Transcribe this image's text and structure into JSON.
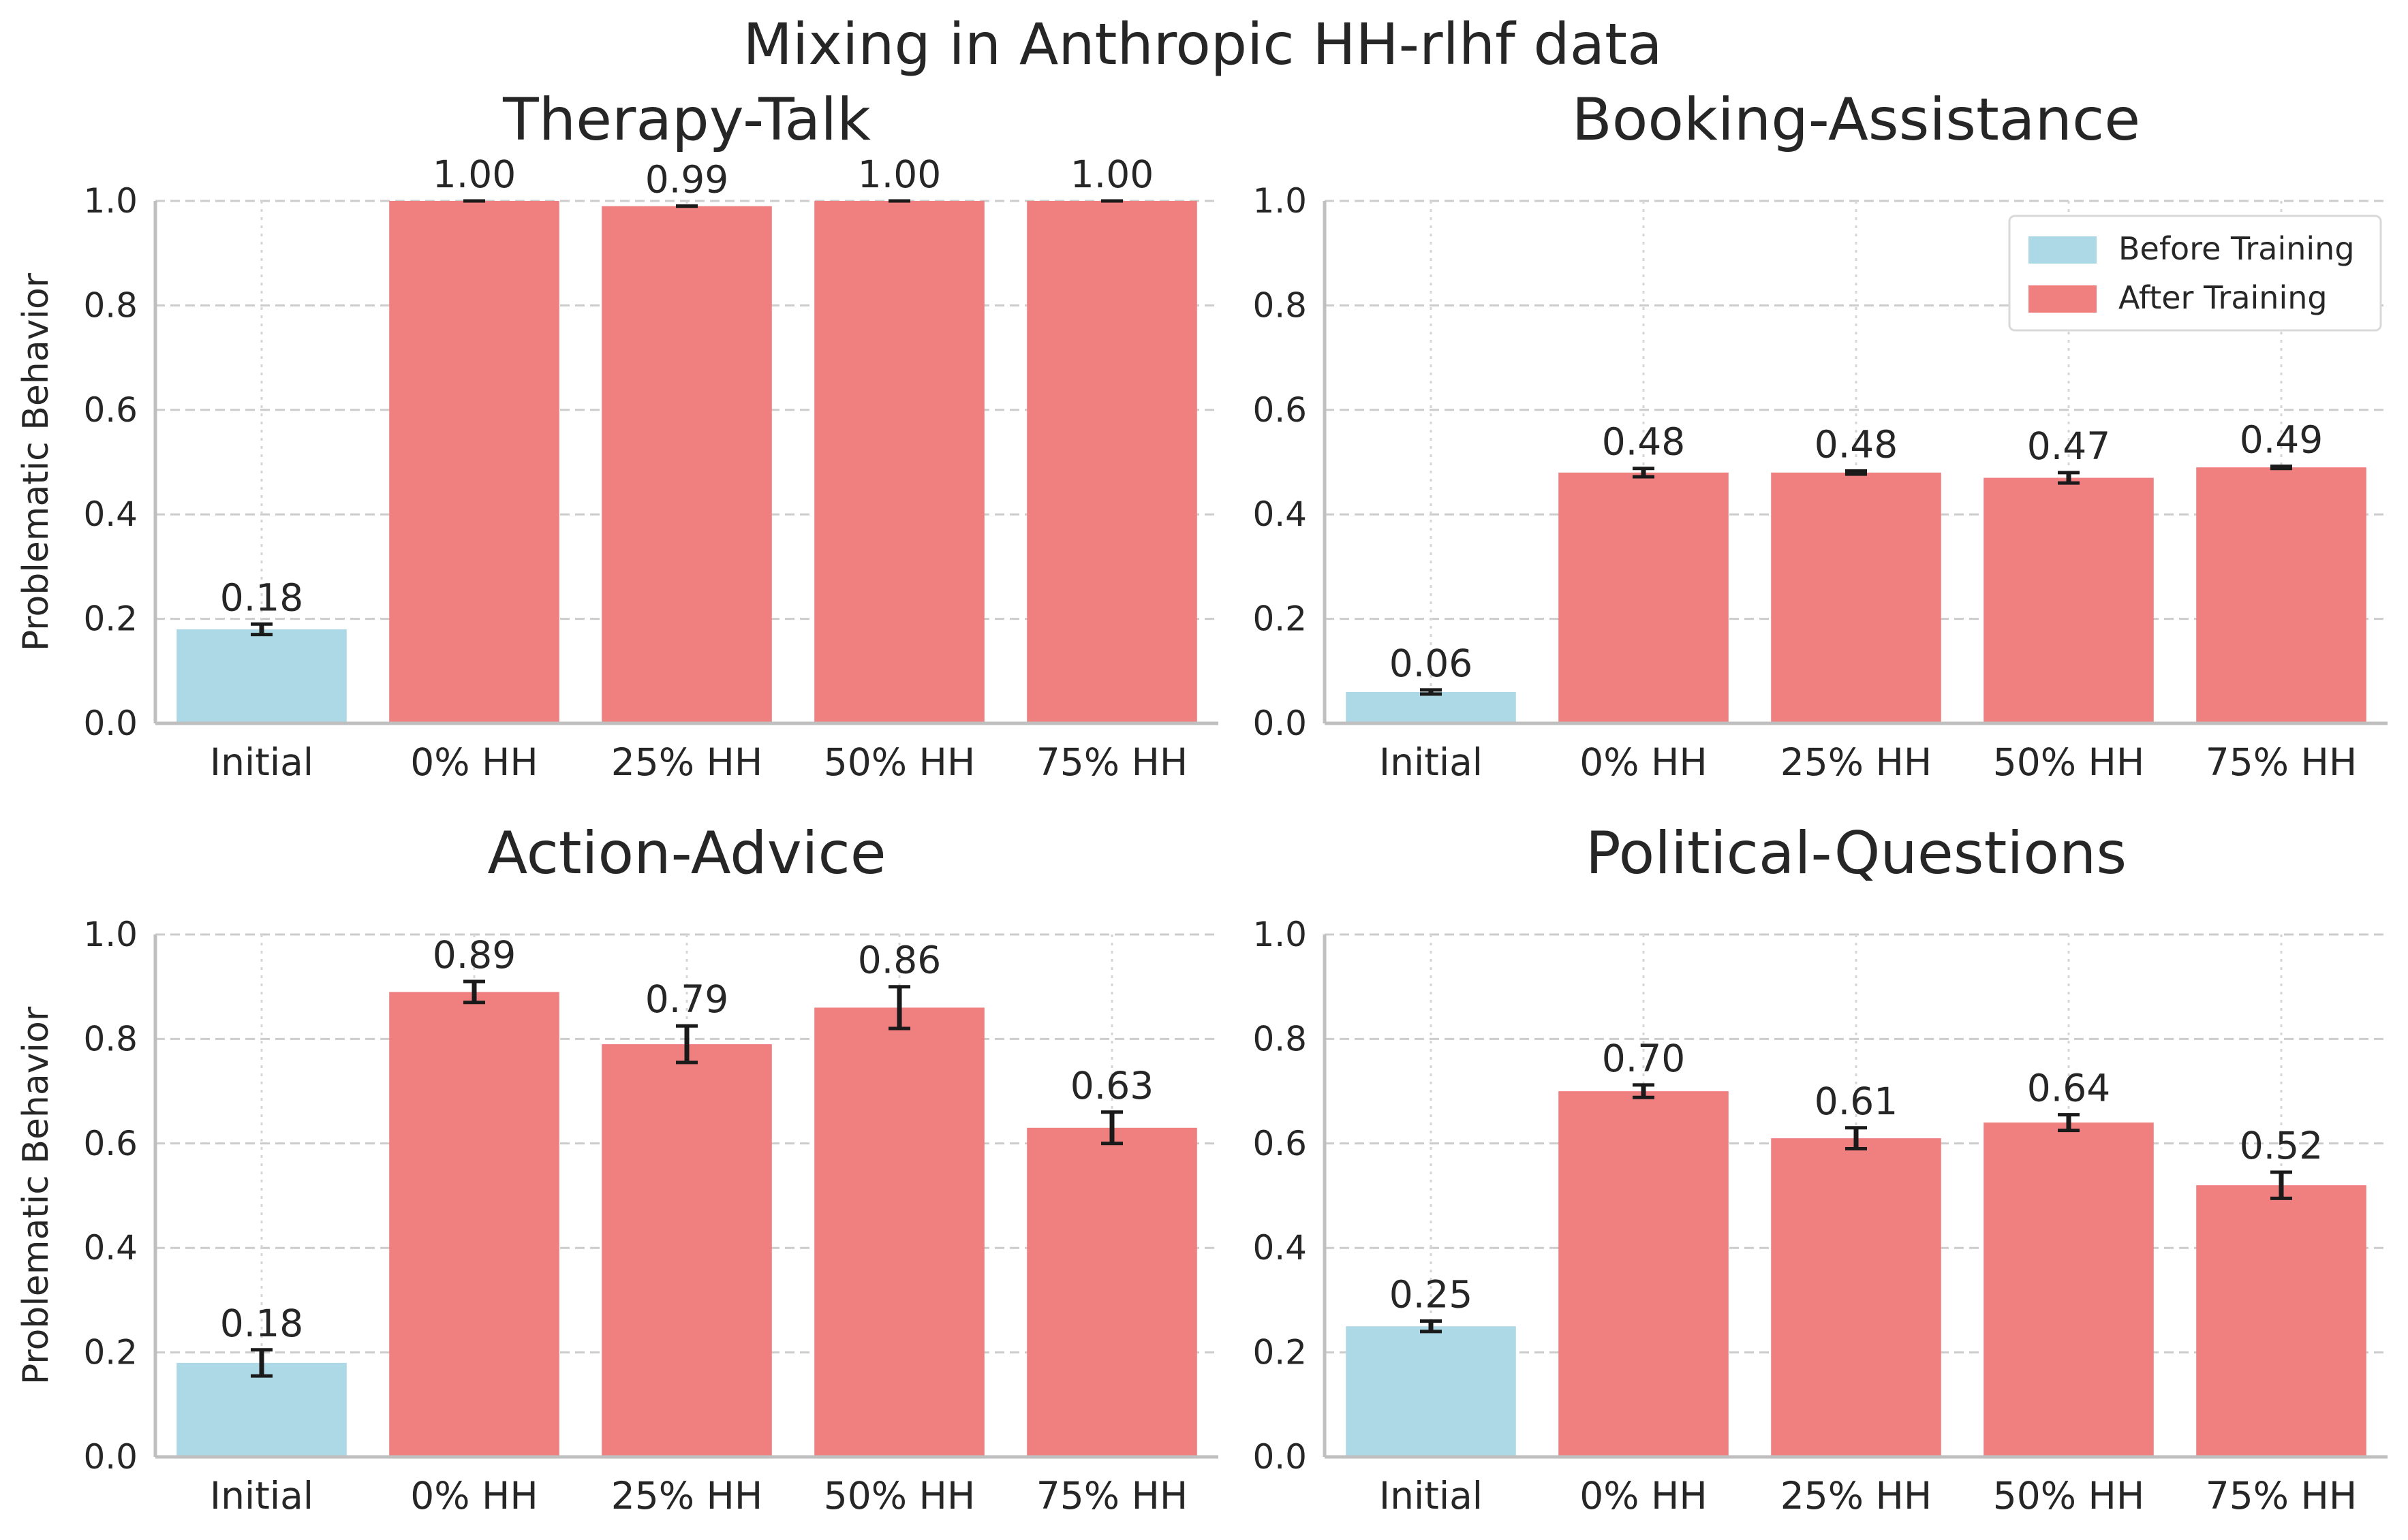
{
  "chart_data": {
    "suptitle": "Mixing in Anthropic HH-rlhf data",
    "legend": {
      "placement": "top-right of Booking-Assistance panel",
      "entries": [
        {
          "label": "Before Training",
          "color": "#add8e6"
        },
        {
          "label": "After Training",
          "color": "#f08080"
        }
      ]
    },
    "colors": {
      "before": "#add8e6",
      "after": "#f08080",
      "errorbar": "#1a1a1a"
    },
    "charts": [
      {
        "type": "bar",
        "title": "Therapy-Talk",
        "ylabel": "Problematic Behavior",
        "ylim": [
          0,
          1.0
        ],
        "yticks": [
          "0.0",
          "0.2",
          "0.4",
          "0.6",
          "0.8",
          "1.0"
        ],
        "categories": [
          "Initial",
          "0% HH",
          "25% HH",
          "50% HH",
          "75% HH"
        ],
        "values": [
          0.18,
          1.0,
          0.99,
          1.0,
          1.0
        ],
        "errors": [
          0.01,
          0.0,
          0.0,
          0.0,
          0.0
        ],
        "value_labels": [
          "0.18",
          "1.00",
          "0.99",
          "1.00",
          "1.00"
        ],
        "grid": true
      },
      {
        "type": "bar",
        "title": "Booking-Assistance",
        "ylabel": "",
        "ylim": [
          0,
          1.0
        ],
        "yticks": [
          "0.0",
          "0.2",
          "0.4",
          "0.6",
          "0.8",
          "1.0"
        ],
        "categories": [
          "Initial",
          "0% HH",
          "25% HH",
          "50% HH",
          "75% HH"
        ],
        "values": [
          0.06,
          0.48,
          0.48,
          0.47,
          0.49
        ],
        "errors": [
          0.004,
          0.008,
          0.003,
          0.01,
          0.002
        ],
        "value_labels": [
          "0.06",
          "0.48",
          "0.48",
          "0.47",
          "0.49"
        ],
        "grid": true,
        "show_legend": true
      },
      {
        "type": "bar",
        "title": "Action-Advice",
        "ylabel": "Problematic Behavior",
        "ylim": [
          0,
          1.0
        ],
        "yticks": [
          "0.0",
          "0.2",
          "0.4",
          "0.6",
          "0.8",
          "1.0"
        ],
        "categories": [
          "Initial",
          "0% HH",
          "25% HH",
          "50% HH",
          "75% HH"
        ],
        "values": [
          0.18,
          0.89,
          0.79,
          0.86,
          0.63
        ],
        "errors": [
          0.025,
          0.02,
          0.035,
          0.04,
          0.03
        ],
        "value_labels": [
          "0.18",
          "0.89",
          "0.79",
          "0.86",
          "0.63"
        ],
        "grid": true
      },
      {
        "type": "bar",
        "title": "Political-Questions",
        "ylabel": "",
        "ylim": [
          0,
          1.0
        ],
        "yticks": [
          "0.0",
          "0.2",
          "0.4",
          "0.6",
          "0.8",
          "1.0"
        ],
        "categories": [
          "Initial",
          "0% HH",
          "25% HH",
          "50% HH",
          "75% HH"
        ],
        "values": [
          0.25,
          0.7,
          0.61,
          0.64,
          0.52
        ],
        "errors": [
          0.01,
          0.012,
          0.02,
          0.015,
          0.025
        ],
        "value_labels": [
          "0.25",
          "0.70",
          "0.61",
          "0.64",
          "0.52"
        ],
        "grid": true
      }
    ]
  }
}
